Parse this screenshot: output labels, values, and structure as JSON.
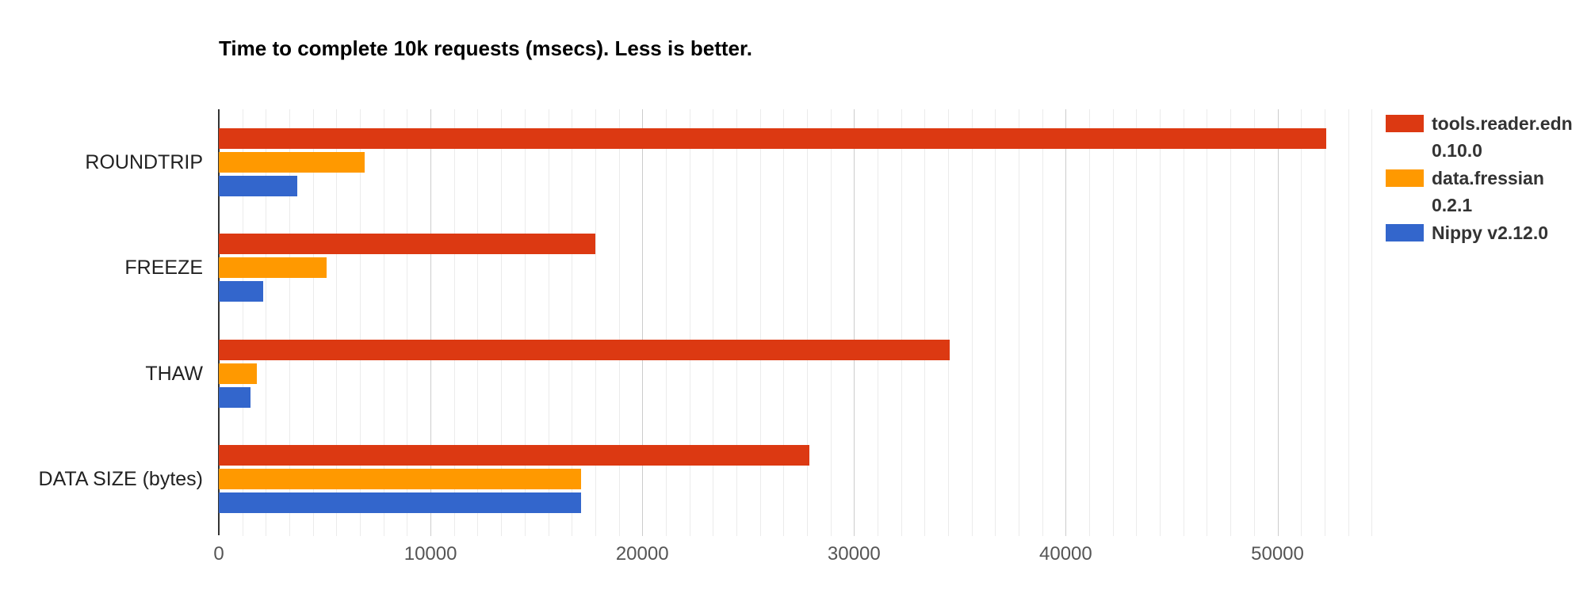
{
  "title": "Time to complete 10k requests (msecs). Less is better.",
  "chart_data": {
    "type": "bar",
    "orientation": "horizontal",
    "title": "Time to complete 10k requests (msecs). Less is better.",
    "xlabel": "",
    "ylabel": "",
    "categories": [
      "ROUNDTRIP",
      "FREEZE",
      "THAW",
      "DATA SIZE (bytes)"
    ],
    "series": [
      {
        "name": "tools.reader.edn 0.10.0",
        "label_lines": [
          "tools.reader.edn",
          "0.10.0"
        ],
        "color": "#dc3912",
        "values": [
          52300,
          17800,
          34500,
          27900
        ]
      },
      {
        "name": "data.fressian 0.2.1",
        "label_lines": [
          "data.fressian",
          "0.2.1"
        ],
        "color": "#ff9900",
        "values": [
          6900,
          5100,
          1800,
          17100
        ]
      },
      {
        "name": "Nippy v2.12.0",
        "label_lines": [
          "Nippy v2.12.0"
        ],
        "color": "#3366cc",
        "values": [
          3700,
          2100,
          1500,
          17100
        ]
      }
    ],
    "x_axis": {
      "min": 0,
      "max": 55000,
      "tick_step": 10000,
      "tick_labels": [
        "0",
        "10000",
        "20000",
        "30000",
        "40000",
        "50000"
      ],
      "minor_divisions_per_major": 9
    },
    "legend_position": "right",
    "grid": true,
    "background_color": "#ffffff"
  }
}
